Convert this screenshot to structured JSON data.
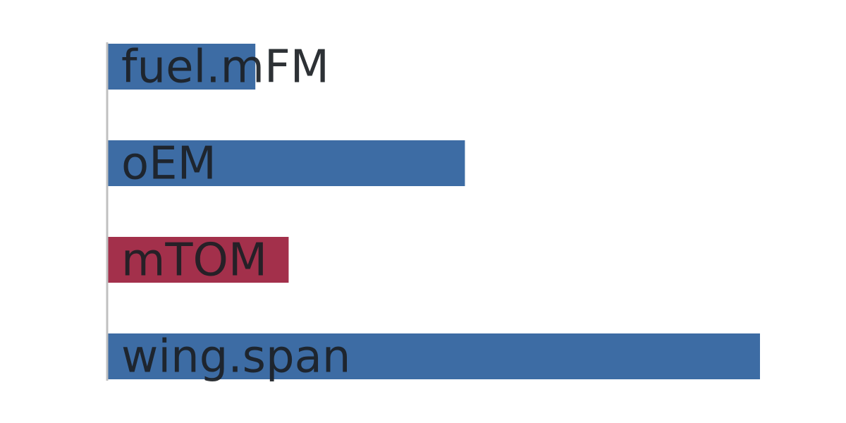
{
  "chart_data": {
    "type": "bar",
    "orientation": "horizontal",
    "categories": [
      "fuel.mFM",
      "oEM",
      "mTOM",
      "wing.span"
    ],
    "values": [
      0.227,
      0.548,
      0.278,
      1.0
    ],
    "highlighted": [
      false,
      false,
      true,
      false
    ],
    "title": "",
    "xlabel": "",
    "ylabel": "",
    "xlim": [
      0,
      1.0
    ],
    "grid": false,
    "legend": "none",
    "colors": {
      "default": "#3d6ca4",
      "highlight": "#a3304b",
      "axis": "#c0c0c0"
    }
  }
}
